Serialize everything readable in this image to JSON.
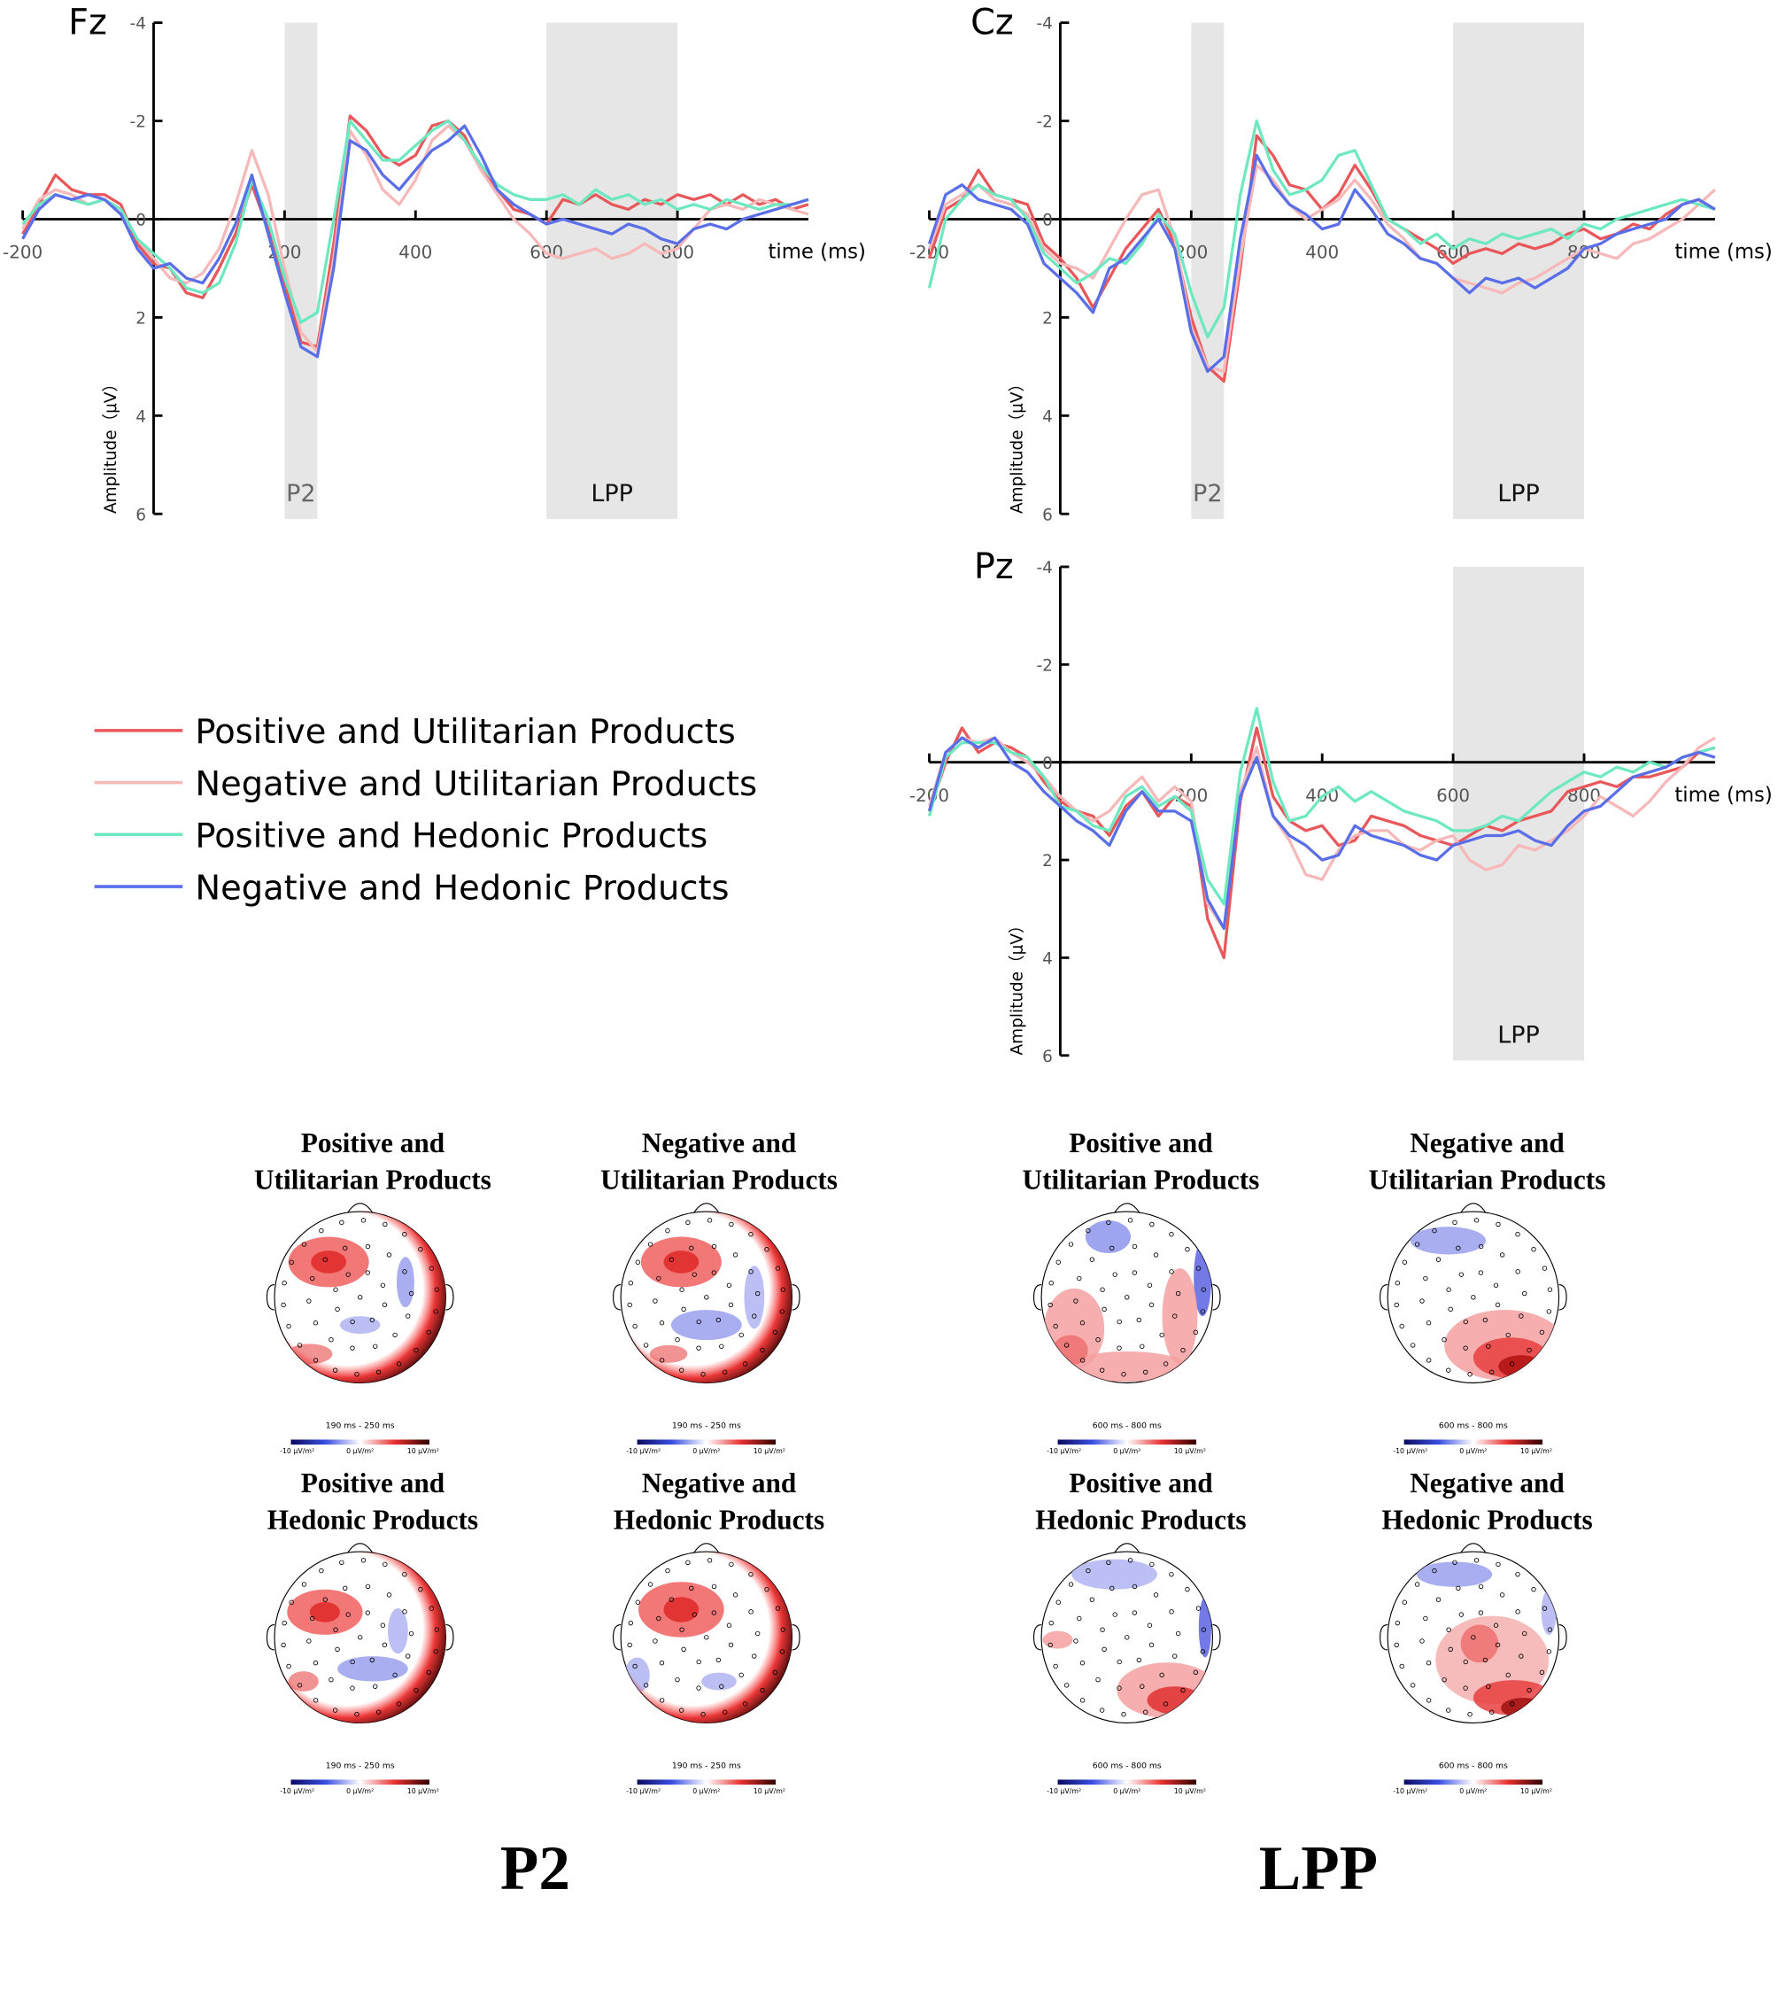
{
  "chart_data": [
    {
      "type": "line",
      "title": "Fz",
      "xlabel": "time (ms)",
      "ylabel": "Amplitude（μV）",
      "xlim": [
        -200,
        1000
      ],
      "ylim": [
        -4,
        6
      ],
      "y_inverted": true,
      "xticks": [
        -200,
        200,
        400,
        600,
        800
      ],
      "yticks": [
        -4,
        -2,
        0,
        2,
        4,
        6
      ],
      "regions": [
        {
          "label": "P2",
          "range": [
            200,
            250
          ]
        },
        {
          "label": "LPP",
          "range": [
            600,
            800
          ]
        }
      ],
      "x": [
        -200,
        -175,
        -150,
        -125,
        -100,
        -75,
        -50,
        -25,
        0,
        25,
        50,
        75,
        100,
        125,
        150,
        175,
        200,
        225,
        250,
        275,
        300,
        325,
        350,
        375,
        400,
        425,
        450,
        475,
        500,
        525,
        550,
        575,
        600,
        625,
        650,
        675,
        700,
        725,
        750,
        775,
        800,
        825,
        850,
        875,
        900,
        925,
        950,
        975,
        1000
      ],
      "series": [
        {
          "name": "Positive and Utilitarian Products",
          "color": "#e8575a",
          "values": [
            0.3,
            -0.3,
            -0.9,
            -0.6,
            -0.5,
            -0.5,
            -0.3,
            0.5,
            0.9,
            1.0,
            1.5,
            1.6,
            1.0,
            0.3,
            -0.7,
            0.2,
            1.3,
            2.5,
            2.6,
            0.5,
            -2.1,
            -1.8,
            -1.3,
            -1.1,
            -1.3,
            -1.9,
            -2.0,
            -1.7,
            -1.0,
            -0.6,
            -0.2,
            -0.1,
            0.1,
            -0.4,
            -0.3,
            -0.5,
            -0.3,
            -0.2,
            -0.4,
            -0.3,
            -0.5,
            -0.4,
            -0.5,
            -0.3,
            -0.5,
            -0.3,
            -0.4,
            -0.2,
            -0.3
          ]
        },
        {
          "name": "Negative and Utilitarian Products",
          "color": "#f6b8b8",
          "values": [
            0.2,
            -0.4,
            -0.6,
            -0.5,
            -0.3,
            -0.4,
            -0.2,
            0.4,
            0.8,
            1.2,
            1.3,
            1.1,
            0.6,
            -0.3,
            -1.4,
            -0.5,
            1.0,
            2.3,
            2.7,
            0.8,
            -1.8,
            -1.3,
            -0.6,
            -0.3,
            -0.8,
            -1.6,
            -1.9,
            -1.6,
            -1.0,
            -0.5,
            0.0,
            0.3,
            0.7,
            0.8,
            0.7,
            0.6,
            0.8,
            0.7,
            0.5,
            0.7,
            0.6,
            0.2,
            -0.2,
            -0.3,
            -0.2,
            -0.4,
            -0.3,
            -0.2,
            -0.1
          ]
        },
        {
          "name": "Positive and Hedonic Products",
          "color": "#6ee8c0",
          "values": [
            0.1,
            -0.3,
            -0.5,
            -0.4,
            -0.3,
            -0.4,
            -0.2,
            0.4,
            0.7,
            1.0,
            1.4,
            1.5,
            1.3,
            0.5,
            -0.8,
            0.0,
            1.2,
            2.1,
            1.9,
            0.0,
            -2.0,
            -1.6,
            -1.2,
            -1.2,
            -1.5,
            -1.8,
            -2.0,
            -1.6,
            -1.1,
            -0.7,
            -0.5,
            -0.4,
            -0.4,
            -0.5,
            -0.3,
            -0.6,
            -0.4,
            -0.5,
            -0.3,
            -0.4,
            -0.2,
            -0.3,
            -0.2,
            -0.4,
            -0.3,
            -0.2,
            -0.3,
            -0.3,
            -0.4
          ]
        },
        {
          "name": "Negative and Hedonic Products",
          "color": "#5a6ee8",
          "values": [
            0.4,
            -0.2,
            -0.5,
            -0.4,
            -0.5,
            -0.4,
            -0.1,
            0.6,
            1.0,
            0.9,
            1.2,
            1.3,
            0.8,
            0.1,
            -0.9,
            0.3,
            1.5,
            2.6,
            2.8,
            1.0,
            -1.6,
            -1.4,
            -0.9,
            -0.6,
            -1.0,
            -1.4,
            -1.6,
            -1.9,
            -1.3,
            -0.6,
            -0.3,
            -0.1,
            0.1,
            0.0,
            0.1,
            0.2,
            0.3,
            0.1,
            0.2,
            0.4,
            0.5,
            0.2,
            0.1,
            0.2,
            0.0,
            -0.1,
            -0.2,
            -0.3,
            -0.4
          ]
        }
      ]
    },
    {
      "type": "line",
      "title": "Cz",
      "xlabel": "time (ms)",
      "ylabel": "Amplitude（μV）",
      "xlim": [
        -200,
        1000
      ],
      "ylim": [
        -4,
        6
      ],
      "y_inverted": true,
      "xticks": [
        -200,
        200,
        400,
        600,
        800
      ],
      "yticks": [
        -4,
        -2,
        0,
        2,
        4,
        6
      ],
      "regions": [
        {
          "label": "P2",
          "range": [
            200,
            250
          ]
        },
        {
          "label": "LPP",
          "range": [
            600,
            800
          ]
        }
      ],
      "x": [
        -200,
        -175,
        -150,
        -125,
        -100,
        -75,
        -50,
        -25,
        0,
        25,
        50,
        75,
        100,
        125,
        150,
        175,
        200,
        225,
        250,
        275,
        300,
        325,
        350,
        375,
        400,
        425,
        450,
        475,
        500,
        525,
        550,
        575,
        600,
        625,
        650,
        675,
        700,
        725,
        750,
        775,
        800,
        825,
        850,
        875,
        900,
        925,
        950,
        975,
        1000
      ],
      "series": [
        {
          "color": "#e8575a",
          "values": [
            0.8,
            -0.2,
            -0.4,
            -1.0,
            -0.5,
            -0.4,
            -0.3,
            0.5,
            0.8,
            1.2,
            1.8,
            1.2,
            0.6,
            0.2,
            -0.2,
            0.5,
            2.0,
            3.0,
            3.3,
            1.0,
            -1.7,
            -1.3,
            -0.7,
            -0.6,
            -0.2,
            -0.5,
            -1.1,
            -0.6,
            0.0,
            0.2,
            0.4,
            0.6,
            0.9,
            0.7,
            0.6,
            0.7,
            0.5,
            0.6,
            0.5,
            0.3,
            0.2,
            0.4,
            0.3,
            0.1,
            0.2,
            -0.1,
            -0.3,
            -0.4,
            -0.2
          ]
        },
        {
          "color": "#f6b8b8",
          "values": [
            0.6,
            -0.3,
            -0.5,
            -0.7,
            -0.4,
            -0.3,
            -0.1,
            0.6,
            0.9,
            1.0,
            1.2,
            0.6,
            0.0,
            -0.5,
            -0.6,
            0.4,
            2.2,
            3.0,
            3.1,
            0.8,
            -1.1,
            -0.8,
            -0.3,
            0.0,
            -0.2,
            -0.4,
            -0.8,
            -0.4,
            0.1,
            0.4,
            0.8,
            0.9,
            1.2,
            1.3,
            1.4,
            1.5,
            1.3,
            1.2,
            1.0,
            0.8,
            0.6,
            0.7,
            0.8,
            0.5,
            0.4,
            0.2,
            0.0,
            -0.3,
            -0.6
          ]
        },
        {
          "color": "#6ee8c0",
          "values": [
            1.4,
            0.0,
            -0.4,
            -0.7,
            -0.5,
            -0.4,
            0.0,
            0.7,
            1.0,
            1.3,
            1.1,
            0.8,
            0.9,
            0.5,
            -0.1,
            0.3,
            1.5,
            2.4,
            1.8,
            -0.5,
            -2.0,
            -1.0,
            -0.5,
            -0.6,
            -0.8,
            -1.3,
            -1.4,
            -0.7,
            0.0,
            0.2,
            0.5,
            0.3,
            0.6,
            0.4,
            0.5,
            0.3,
            0.4,
            0.3,
            0.2,
            0.4,
            0.1,
            0.2,
            0.0,
            -0.1,
            -0.2,
            -0.3,
            -0.4,
            -0.3,
            -0.2
          ]
        },
        {
          "color": "#5a6ee8",
          "values": [
            0.5,
            -0.5,
            -0.7,
            -0.4,
            -0.3,
            -0.2,
            0.1,
            0.9,
            1.2,
            1.5,
            1.9,
            1.0,
            0.8,
            0.4,
            0.0,
            0.6,
            2.3,
            3.1,
            2.8,
            0.4,
            -1.3,
            -0.7,
            -0.3,
            -0.1,
            0.2,
            0.1,
            -0.6,
            -0.2,
            0.3,
            0.5,
            0.8,
            0.9,
            1.2,
            1.5,
            1.2,
            1.3,
            1.2,
            1.4,
            1.2,
            1.0,
            0.6,
            0.5,
            0.3,
            0.2,
            0.1,
            0.0,
            -0.3,
            -0.4,
            -0.2
          ]
        }
      ]
    },
    {
      "type": "line",
      "title": "Pz",
      "xlabel": "time (ms)",
      "ylabel": "Amplitude（μV）",
      "xlim": [
        -200,
        1000
      ],
      "ylim": [
        -4,
        6
      ],
      "y_inverted": true,
      "xticks": [
        -200,
        200,
        400,
        600,
        800
      ],
      "yticks": [
        -4,
        -2,
        0,
        2,
        4,
        6
      ],
      "regions": [
        {
          "label": "LPP",
          "range": [
            600,
            800
          ]
        }
      ],
      "x": [
        -200,
        -175,
        -150,
        -125,
        -100,
        -75,
        -50,
        -25,
        0,
        25,
        50,
        75,
        100,
        125,
        150,
        175,
        200,
        225,
        250,
        275,
        300,
        325,
        350,
        375,
        400,
        425,
        450,
        475,
        500,
        525,
        550,
        575,
        600,
        625,
        650,
        675,
        700,
        725,
        750,
        775,
        800,
        825,
        850,
        875,
        900,
        925,
        950,
        975,
        1000
      ],
      "series": [
        {
          "color": "#e8575a",
          "values": [
            1.0,
            0.0,
            -0.7,
            -0.2,
            -0.4,
            -0.3,
            -0.1,
            0.4,
            0.8,
            1.0,
            1.1,
            1.5,
            0.9,
            0.6,
            1.1,
            0.7,
            0.9,
            3.2,
            4.0,
            0.8,
            -0.7,
            0.7,
            1.2,
            1.4,
            1.3,
            1.7,
            1.6,
            1.1,
            1.2,
            1.3,
            1.5,
            1.6,
            1.7,
            1.5,
            1.3,
            1.4,
            1.2,
            1.1,
            1.0,
            0.6,
            0.5,
            0.4,
            0.5,
            0.3,
            0.3,
            0.2,
            0.1,
            -0.2,
            -0.3
          ]
        },
        {
          "color": "#f6b8b8",
          "values": [
            0.9,
            -0.2,
            -0.5,
            -0.4,
            -0.5,
            -0.2,
            0.0,
            0.3,
            0.7,
            1.0,
            1.2,
            1.0,
            0.6,
            0.3,
            0.8,
            0.5,
            0.8,
            2.9,
            3.4,
            0.6,
            -0.3,
            1.1,
            1.6,
            2.3,
            2.4,
            1.8,
            1.5,
            1.4,
            1.4,
            1.7,
            1.8,
            1.6,
            1.5,
            2.0,
            2.2,
            2.1,
            1.7,
            1.8,
            1.6,
            1.4,
            1.1,
            0.7,
            0.9,
            1.1,
            0.8,
            0.4,
            0.1,
            -0.3,
            -0.5
          ]
        },
        {
          "color": "#6ee8c0",
          "values": [
            1.1,
            -0.1,
            -0.4,
            -0.4,
            -0.4,
            -0.2,
            -0.1,
            0.3,
            0.9,
            1.0,
            1.3,
            1.4,
            0.7,
            0.5,
            0.9,
            0.7,
            1.0,
            2.4,
            2.9,
            0.2,
            -1.1,
            0.4,
            1.2,
            1.1,
            0.7,
            0.5,
            0.8,
            0.6,
            0.8,
            1.0,
            1.1,
            1.2,
            1.4,
            1.4,
            1.3,
            1.1,
            1.2,
            0.9,
            0.6,
            0.4,
            0.2,
            0.3,
            0.1,
            0.2,
            0.0,
            0.1,
            -0.1,
            -0.2,
            -0.3
          ]
        },
        {
          "color": "#5a6ee8",
          "values": [
            1.0,
            -0.2,
            -0.5,
            -0.3,
            -0.5,
            0.0,
            0.2,
            0.6,
            0.9,
            1.2,
            1.4,
            1.7,
            1.0,
            0.6,
            1.0,
            1.0,
            1.2,
            2.8,
            3.4,
            0.7,
            -0.1,
            1.1,
            1.5,
            1.7,
            2.0,
            1.9,
            1.3,
            1.5,
            1.6,
            1.7,
            1.9,
            2.0,
            1.7,
            1.6,
            1.5,
            1.5,
            1.4,
            1.6,
            1.7,
            1.3,
            1.0,
            0.9,
            0.6,
            0.3,
            0.2,
            0.1,
            -0.1,
            -0.2,
            -0.1
          ]
        }
      ]
    }
  ],
  "topomaps": [
    {
      "label": "P2",
      "time_range": "190 ms - 250 ms",
      "colorbar": [
        "-10 μV/m²",
        "0 μV/m²",
        "10 μV/m²"
      ],
      "maps": [
        {
          "title": [
            "Positive and",
            "Utilitarian Products"
          ]
        },
        {
          "title": [
            "Negative and",
            "Utilitarian Products"
          ]
        },
        {
          "title": [
            "Positive and",
            "Hedonic Products"
          ]
        },
        {
          "title": [
            "Negative and",
            "Hedonic Products"
          ]
        }
      ]
    },
    {
      "label": "LPP",
      "time_range": "600 ms - 800 ms",
      "colorbar": [
        "-10 μV/m²",
        "0 μV/m²",
        "10 μV/m²"
      ],
      "maps": [
        {
          "title": [
            "Positive and",
            "Utilitarian Products"
          ]
        },
        {
          "title": [
            "Negative and",
            "Utilitarian Products"
          ]
        },
        {
          "title": [
            "Positive and",
            "Hedonic Products"
          ]
        },
        {
          "title": [
            "Negative and",
            "Hedonic Products"
          ]
        }
      ]
    }
  ]
}
